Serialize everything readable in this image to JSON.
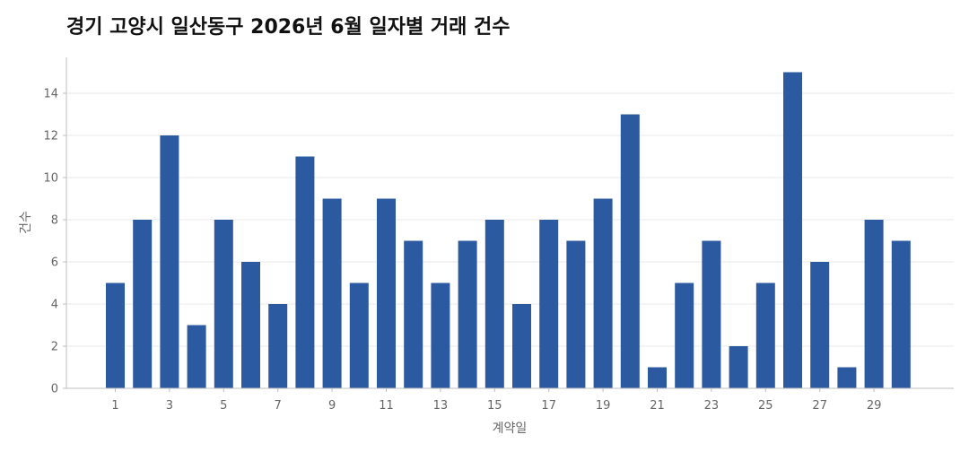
{
  "chart_data": {
    "type": "bar",
    "title": "경기 고양시 일산동구 2026년 6월 일자별 거래 건수",
    "xlabel": "계약일",
    "ylabel": "건수",
    "categories": [
      1,
      2,
      3,
      4,
      5,
      6,
      7,
      8,
      9,
      10,
      11,
      12,
      13,
      14,
      15,
      16,
      17,
      18,
      19,
      20,
      21,
      22,
      23,
      24,
      25,
      26,
      27,
      28,
      29,
      30
    ],
    "values": [
      5,
      8,
      12,
      3,
      8,
      6,
      4,
      11,
      9,
      5,
      9,
      7,
      5,
      7,
      8,
      4,
      8,
      7,
      9,
      13,
      1,
      5,
      7,
      2,
      5,
      15,
      6,
      1,
      8,
      7
    ],
    "x_tick_labels": [
      "1",
      "3",
      "5",
      "7",
      "9",
      "11",
      "13",
      "15",
      "17",
      "19",
      "21",
      "23",
      "25",
      "27",
      "29"
    ],
    "y_tick_labels": [
      "0",
      "2",
      "4",
      "6",
      "8",
      "10",
      "12",
      "14"
    ],
    "ylim": [
      0,
      15.5
    ],
    "grid": "horizontal",
    "bar_color": "#2c5aa0"
  }
}
